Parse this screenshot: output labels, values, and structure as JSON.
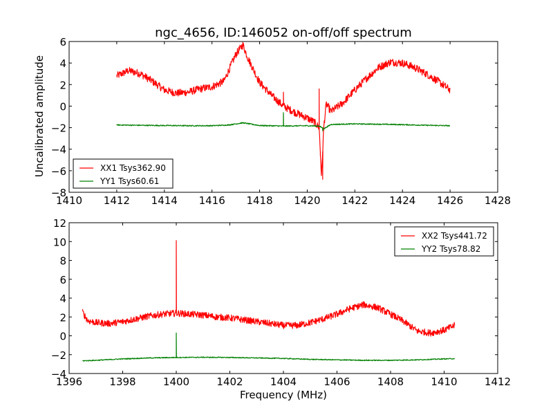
{
  "chart_data": [
    {
      "type": "line",
      "title": "ngc_4656, ID:146052 on-off/off spectrum",
      "xlabel": "",
      "ylabel": "Uncalibrated amplitude",
      "xlim": [
        1410,
        1428
      ],
      "ylim": [
        -8,
        6
      ],
      "xticks": [
        "1410",
        "1412",
        "1414",
        "1416",
        "1418",
        "1420",
        "1422",
        "1424",
        "1426",
        "1428"
      ],
      "yticks": [
        "−8",
        "−6",
        "−4",
        "−2",
        "0",
        "2",
        "4",
        "6"
      ],
      "grid": false,
      "legend_position": "lower-left",
      "series": [
        {
          "name": "XX1 Tsys362.90",
          "color": "#ff0000",
          "x": [
            1412.0,
            1412.5,
            1413.0,
            1413.5,
            1414.0,
            1414.5,
            1415.0,
            1415.5,
            1416.0,
            1416.5,
            1417.0,
            1417.3,
            1417.5,
            1418.0,
            1418.5,
            1419.0,
            1419.5,
            1420.0,
            1420.3,
            1420.5,
            1420.6,
            1420.7,
            1420.8,
            1421.0,
            1421.5,
            1422.0,
            1422.5,
            1423.0,
            1423.5,
            1424.0,
            1424.5,
            1425.0,
            1425.5,
            1426.0
          ],
          "values": [
            2.8,
            3.3,
            3.0,
            2.3,
            1.5,
            1.2,
            1.3,
            1.6,
            1.8,
            2.3,
            4.8,
            5.7,
            4.5,
            2.2,
            1.0,
            0.0,
            -0.6,
            -1.1,
            -1.5,
            -2.0,
            -6.5,
            -1.8,
            0.2,
            -0.5,
            0.3,
            1.5,
            2.6,
            3.6,
            4.1,
            4.0,
            3.6,
            3.0,
            2.3,
            1.5
          ],
          "spikes": [
            {
              "x": 1419.0,
              "value": 1.3
            },
            {
              "x": 1420.5,
              "value": 1.6
            },
            {
              "x": 1420.55,
              "value": -4.6
            },
            {
              "x": 1420.65,
              "value": -6.8
            }
          ]
        },
        {
          "name": "YY1 Tsys60.61",
          "color": "#008000",
          "x": [
            1412.0,
            1413.0,
            1414.0,
            1415.0,
            1416.0,
            1416.7,
            1417.3,
            1418.0,
            1419.0,
            1420.0,
            1420.5,
            1420.7,
            1421.0,
            1422.0,
            1423.0,
            1424.0,
            1425.0,
            1426.0
          ],
          "values": [
            -1.75,
            -1.78,
            -1.8,
            -1.82,
            -1.82,
            -1.75,
            -1.55,
            -1.8,
            -1.85,
            -1.82,
            -1.85,
            -2.1,
            -1.7,
            -1.65,
            -1.68,
            -1.72,
            -1.78,
            -1.82
          ],
          "spikes": [
            {
              "x": 1419.0,
              "value": -0.6
            },
            {
              "x": 1420.65,
              "value": -2.3
            }
          ]
        }
      ]
    },
    {
      "type": "line",
      "title": "",
      "xlabel": "Frequency (MHz)",
      "ylabel": "",
      "xlim": [
        1396,
        1412
      ],
      "ylim": [
        -4,
        12
      ],
      "xticks": [
        "1396",
        "1398",
        "1400",
        "1402",
        "1404",
        "1406",
        "1408",
        "1410",
        "1412"
      ],
      "yticks": [
        "−4",
        "−2",
        "0",
        "2",
        "4",
        "6",
        "8",
        "10",
        "12"
      ],
      "grid": false,
      "legend_position": "top-right",
      "series": [
        {
          "name": "XX2 Tsys441.72",
          "color": "#ff0000",
          "x": [
            1396.5,
            1396.7,
            1397.0,
            1397.5,
            1398.0,
            1398.5,
            1399.0,
            1399.5,
            1400.0,
            1400.5,
            1401.0,
            1401.5,
            1402.0,
            1402.5,
            1403.0,
            1403.5,
            1404.0,
            1404.5,
            1405.0,
            1405.5,
            1406.0,
            1406.5,
            1407.0,
            1407.5,
            1408.0,
            1408.5,
            1409.0,
            1409.5,
            1410.0,
            1410.4
          ],
          "values": [
            2.5,
            1.6,
            1.4,
            1.3,
            1.5,
            1.8,
            2.1,
            2.3,
            2.4,
            2.3,
            2.2,
            2.0,
            1.9,
            1.7,
            1.5,
            1.3,
            1.1,
            1.1,
            1.4,
            1.8,
            2.3,
            2.9,
            3.3,
            3.0,
            2.3,
            1.5,
            0.5,
            0.3,
            0.6,
            1.1
          ],
          "spikes": [
            {
              "x": 1400.0,
              "value": 10.1
            }
          ]
        },
        {
          "name": "YY2 Tsys78.82",
          "color": "#008000",
          "x": [
            1396.5,
            1397.0,
            1398.0,
            1399.0,
            1400.0,
            1401.0,
            1402.0,
            1403.0,
            1404.0,
            1405.0,
            1406.0,
            1407.0,
            1408.0,
            1409.0,
            1410.0,
            1410.4
          ],
          "values": [
            -2.65,
            -2.6,
            -2.45,
            -2.35,
            -2.3,
            -2.28,
            -2.3,
            -2.35,
            -2.4,
            -2.5,
            -2.55,
            -2.6,
            -2.6,
            -2.55,
            -2.45,
            -2.42
          ],
          "spikes": [
            {
              "x": 1400.0,
              "value": 0.3
            }
          ]
        }
      ]
    }
  ]
}
